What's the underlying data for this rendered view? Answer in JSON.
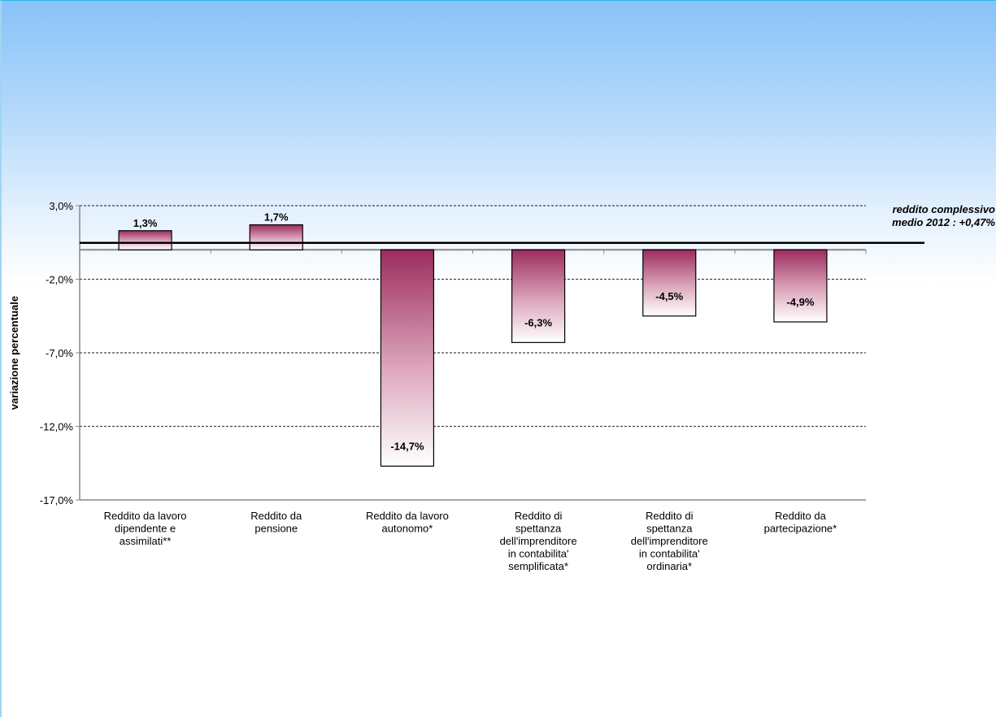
{
  "chart_data": {
    "type": "bar",
    "title": "",
    "xlabel": "",
    "ylabel": "variazione percentuale",
    "ylim": [
      -17,
      3
    ],
    "yticks": [
      3,
      -2,
      -7,
      -12,
      -17
    ],
    "ytick_labels": [
      "3,0%",
      "-2,0%",
      "-7,0%",
      "-12,0%",
      "-17,0%"
    ],
    "grid": true,
    "legend": "none",
    "categories": [
      [
        "Reddito da lavoro",
        "dipendente e",
        "assimilati**"
      ],
      [
        "Reddito da",
        "pensione"
      ],
      [
        "Reddito da lavoro",
        "autonomo*"
      ],
      [
        "Reddito di",
        "spettanza",
        "dell'imprenditore",
        "in contabilita'",
        "semplificata*"
      ],
      [
        "Reddito di",
        "spettanza",
        "dell'imprenditore",
        "in contabilita'",
        "ordinaria*"
      ],
      [
        "Reddito da",
        "partecipazione*"
      ]
    ],
    "values": [
      1.3,
      1.7,
      -14.7,
      -6.3,
      -4.5,
      -4.9
    ],
    "data_labels": [
      "1,3%",
      "1,7%",
      "-14,7%",
      "-6,3%",
      "-4,5%",
      "-4,9%"
    ],
    "reference_line": {
      "value": 0.47,
      "label_lines": [
        "reddito complessivo",
        "medio 2012 : +0,47%"
      ]
    },
    "colors": {
      "bar_top": "#9c2c5e",
      "bar_bottom": "#ffffff",
      "bar_border": "#000000",
      "grid": "#444444",
      "axis": "#888888",
      "reference_line": "#000000"
    }
  }
}
